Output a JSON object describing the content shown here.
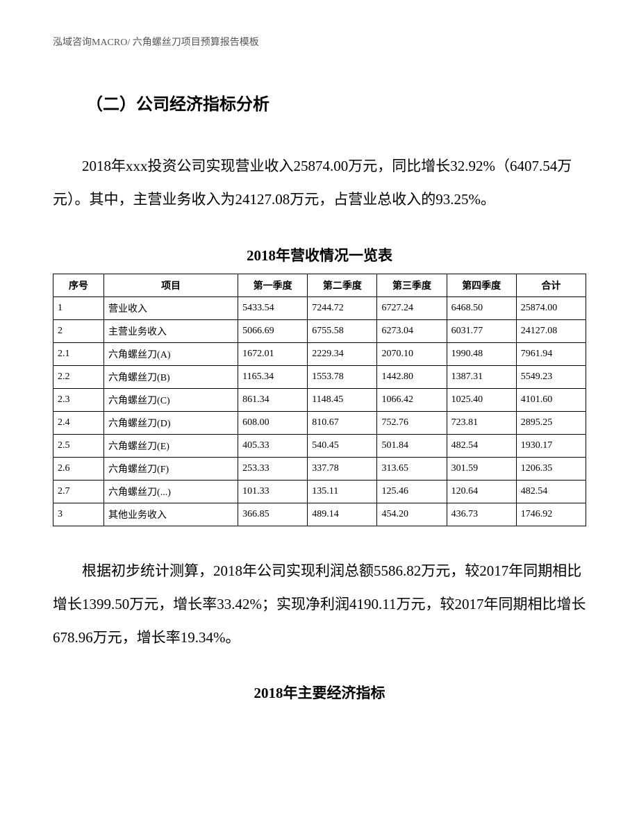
{
  "header": {
    "text": "泓域咨询MACRO/    六角螺丝刀项目预算报告模板"
  },
  "section_title": "（二）公司经济指标分析",
  "paragraph1": "2018年xxx投资公司实现营业收入25874.00万元，同比增长32.92%（6407.54万元）。其中，主营业务收入为24127.08万元，占营业总收入的93.25%。",
  "table1": {
    "title": "2018年营收情况一览表",
    "columns": [
      "序号",
      "项目",
      "第一季度",
      "第二季度",
      "第三季度",
      "第四季度",
      "合计"
    ],
    "rows": [
      [
        "1",
        "营业收入",
        "5433.54",
        "7244.72",
        "6727.24",
        "6468.50",
        "25874.00"
      ],
      [
        "2",
        "主营业务收入",
        "5066.69",
        "6755.58",
        "6273.04",
        "6031.77",
        "24127.08"
      ],
      [
        "2.1",
        "六角螺丝刀(A)",
        "1672.01",
        "2229.34",
        "2070.10",
        "1990.48",
        "7961.94"
      ],
      [
        "2.2",
        "六角螺丝刀(B)",
        "1165.34",
        "1553.78",
        "1442.80",
        "1387.31",
        "5549.23"
      ],
      [
        "2.3",
        "六角螺丝刀(C)",
        "861.34",
        "1148.45",
        "1066.42",
        "1025.40",
        "4101.60"
      ],
      [
        "2.4",
        "六角螺丝刀(D)",
        "608.00",
        "810.67",
        "752.76",
        "723.81",
        "2895.25"
      ],
      [
        "2.5",
        "六角螺丝刀(E)",
        "405.33",
        "540.45",
        "501.84",
        "482.54",
        "1930.17"
      ],
      [
        "2.6",
        "六角螺丝刀(F)",
        "253.33",
        "337.78",
        "313.65",
        "301.59",
        "1206.35"
      ],
      [
        "2.7",
        "六角螺丝刀(...)",
        "101.33",
        "135.11",
        "125.46",
        "120.64",
        "482.54"
      ],
      [
        "3",
        "其他业务收入",
        "366.85",
        "489.14",
        "454.20",
        "436.73",
        "1746.92"
      ]
    ]
  },
  "paragraph2": "根据初步统计测算，2018年公司实现利润总额5586.82万元，较2017年同期相比增长1399.50万元，增长率33.42%；实现净利润4190.11万元，较2017年同期相比增长678.96万元，增长率19.34%。",
  "table2_title": "2018年主要经济指标"
}
